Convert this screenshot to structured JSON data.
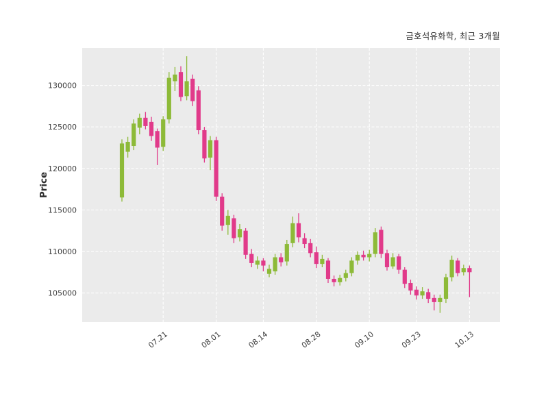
{
  "chart_data": {
    "type": "candlestick",
    "title": "금호석유화학, 최근 3개월",
    "ylabel": "Price",
    "ylim": [
      101500,
      134500
    ],
    "yticks": [
      105000,
      110000,
      115000,
      120000,
      125000,
      130000
    ],
    "xticks": [
      {
        "index": 7,
        "label": "07.21"
      },
      {
        "index": 16,
        "label": "08.01"
      },
      {
        "index": 24,
        "label": "08.14"
      },
      {
        "index": 33,
        "label": "08.28"
      },
      {
        "index": 42,
        "label": "09.10"
      },
      {
        "index": 50,
        "label": "09.23"
      },
      {
        "index": 59,
        "label": "10.13"
      }
    ],
    "colors": {
      "up": "#8dba38",
      "down": "#e13a8a",
      "plot_bg": "#ebebeb",
      "grid": "#ffffff",
      "text": "#3c3c3c"
    },
    "grid": "on",
    "legend": "none",
    "candles_format": [
      "open",
      "high",
      "low",
      "close"
    ],
    "candles": [
      [
        116500,
        123500,
        116000,
        123000
      ],
      [
        122000,
        123800,
        121300,
        123200
      ],
      [
        122700,
        125900,
        122200,
        125400
      ],
      [
        124900,
        126600,
        124100,
        126100
      ],
      [
        126100,
        126800,
        124700,
        125100
      ],
      [
        125600,
        126200,
        123300,
        123900
      ],
      [
        124500,
        124800,
        120400,
        122500
      ],
      [
        122600,
        126300,
        122100,
        125900
      ],
      [
        125900,
        131600,
        125400,
        130900
      ],
      [
        130500,
        132200,
        129300,
        131300
      ],
      [
        131600,
        132300,
        128100,
        128600
      ],
      [
        128700,
        133500,
        128200,
        130500
      ],
      [
        130800,
        131300,
        127500,
        128100
      ],
      [
        129400,
        129900,
        124100,
        124600
      ],
      [
        124600,
        125000,
        120700,
        121200
      ],
      [
        121300,
        123900,
        119800,
        123400
      ],
      [
        123400,
        123800,
        116100,
        116600
      ],
      [
        116600,
        117000,
        112500,
        113100
      ],
      [
        113200,
        115000,
        112000,
        114300
      ],
      [
        114000,
        114400,
        111000,
        111600
      ],
      [
        111700,
        113300,
        111200,
        112700
      ],
      [
        112500,
        112800,
        109100,
        109600
      ],
      [
        109700,
        110300,
        108100,
        108600
      ],
      [
        108400,
        109400,
        107900,
        108900
      ],
      [
        108900,
        109200,
        107600,
        108300
      ],
      [
        107300,
        108400,
        106900,
        107900
      ],
      [
        107600,
        109700,
        107200,
        109300
      ],
      [
        109300,
        109800,
        108200,
        108700
      ],
      [
        108800,
        111400,
        108300,
        110900
      ],
      [
        111000,
        114200,
        110500,
        113400
      ],
      [
        113400,
        114600,
        111100,
        111700
      ],
      [
        111600,
        112200,
        110400,
        110900
      ],
      [
        111000,
        111500,
        109300,
        109800
      ],
      [
        109900,
        110600,
        108000,
        108500
      ],
      [
        108500,
        109600,
        108100,
        109100
      ],
      [
        108900,
        109200,
        106200,
        106700
      ],
      [
        106700,
        107100,
        105800,
        106300
      ],
      [
        106300,
        107200,
        105900,
        106800
      ],
      [
        106800,
        107800,
        106400,
        107400
      ],
      [
        107400,
        109300,
        107000,
        108900
      ],
      [
        108900,
        110000,
        108400,
        109600
      ],
      [
        109600,
        110100,
        108900,
        109300
      ],
      [
        109300,
        110200,
        108800,
        109700
      ],
      [
        109700,
        112800,
        109300,
        112300
      ],
      [
        112600,
        113000,
        109200,
        109700
      ],
      [
        109800,
        110200,
        107700,
        108100
      ],
      [
        108200,
        109800,
        107900,
        109300
      ],
      [
        109400,
        109700,
        107300,
        107800
      ],
      [
        107800,
        108100,
        105600,
        106100
      ],
      [
        106200,
        106600,
        104800,
        105300
      ],
      [
        105400,
        105800,
        104200,
        104700
      ],
      [
        104700,
        105700,
        104300,
        105200
      ],
      [
        105100,
        105500,
        103800,
        104300
      ],
      [
        104400,
        104800,
        102900,
        103900
      ],
      [
        103900,
        104800,
        102600,
        104400
      ],
      [
        104300,
        107300,
        103800,
        106900
      ],
      [
        106900,
        109500,
        106400,
        109000
      ],
      [
        108900,
        109200,
        107000,
        107400
      ],
      [
        107500,
        108400,
        107100,
        108000
      ],
      [
        108000,
        108300,
        104500,
        107500
      ]
    ]
  }
}
